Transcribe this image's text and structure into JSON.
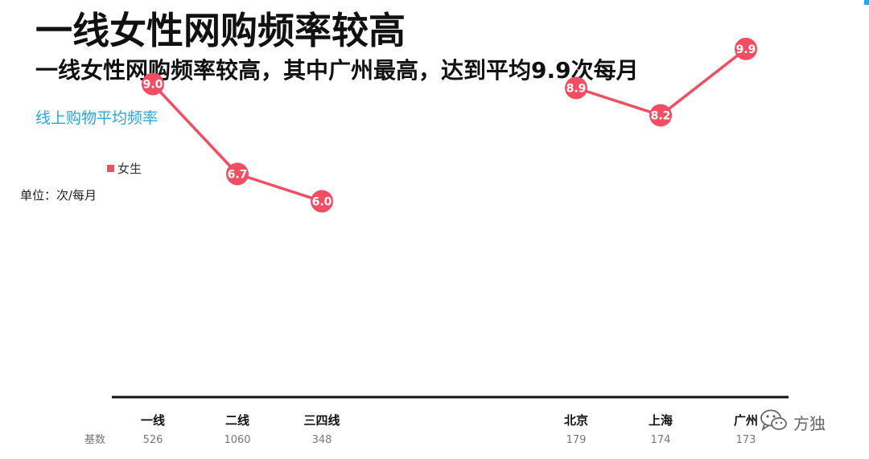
{
  "header": {
    "title": "一线女性网购频率较高",
    "subtitle": "一线女性网购频率较高，其中广州最高，达到平均9.9次每月"
  },
  "section_title": "线上购物平均频率",
  "unit_label": "单位：次/每月",
  "legend": {
    "label": "女生"
  },
  "base": {
    "label": "基数",
    "values": [
      "526",
      "1060",
      "348",
      "179",
      "174",
      "173"
    ]
  },
  "watermark": {
    "text": "方独",
    "icon": "wechat-icon"
  },
  "colors": {
    "series": "#f04e63",
    "accent": "#27a6d9",
    "axis": "#111111"
  },
  "chart_data": {
    "type": "line",
    "categories": [
      "一线",
      "二线",
      "三四线",
      "北京",
      "上海",
      "广州"
    ],
    "series": [
      {
        "name": "女生",
        "groups": [
          {
            "categories": [
              "一线",
              "二线",
              "三四线"
            ],
            "values": [
              9.0,
              6.7,
              6.0
            ],
            "labels": [
              "9.0",
              "6.7",
              "6.0"
            ]
          },
          {
            "categories": [
              "北京",
              "上海",
              "广州"
            ],
            "values": [
              8.9,
              8.2,
              9.9
            ],
            "labels": [
              "8.9",
              "8.2",
              "9.9"
            ]
          }
        ]
      }
    ],
    "ylim": [
      0,
      10
    ],
    "grid": false,
    "legend_position": "top-left"
  }
}
